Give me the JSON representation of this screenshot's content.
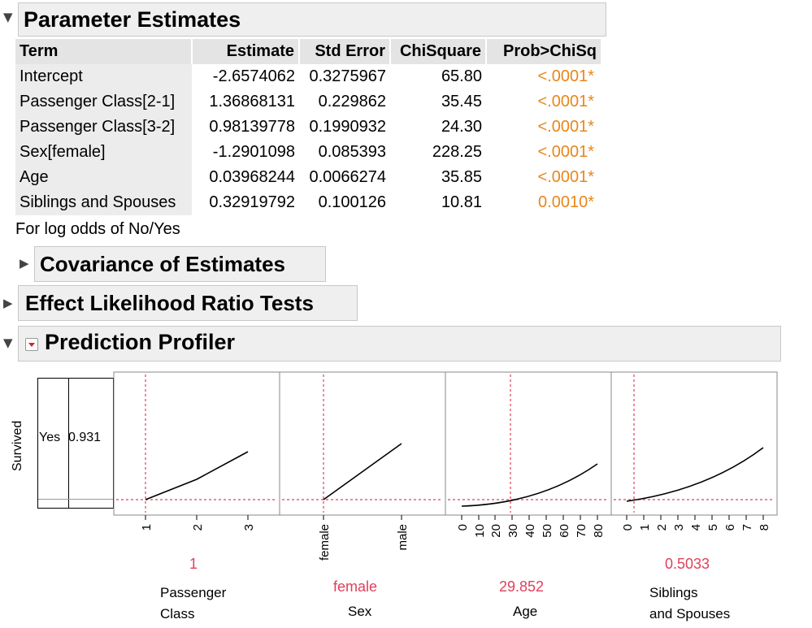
{
  "parameter_estimates": {
    "title": "Parameter Estimates",
    "columns": [
      "Term",
      "Estimate",
      "Std Error",
      "ChiSquare",
      "Prob>ChiSq"
    ],
    "rows": [
      {
        "term": "Intercept",
        "estimate": "-2.6574062",
        "std_error": "0.3275967",
        "chisquare": "65.80",
        "prob": "<.0001*"
      },
      {
        "term": "Passenger Class[2-1]",
        "estimate": "1.36868131",
        "std_error": "0.229862",
        "chisquare": "35.45",
        "prob": "<.0001*"
      },
      {
        "term": "Passenger Class[3-2]",
        "estimate": "0.98139778",
        "std_error": "0.1990932",
        "chisquare": "24.30",
        "prob": "<.0001*"
      },
      {
        "term": "Sex[female]",
        "estimate": "-1.2901098",
        "std_error": "0.085393",
        "chisquare": "228.25",
        "prob": "<.0001*"
      },
      {
        "term": "Age",
        "estimate": "0.03968244",
        "std_error": "0.0066274",
        "chisquare": "35.85",
        "prob": "<.0001*"
      },
      {
        "term": "Siblings and Spouses",
        "estimate": "0.32919792",
        "std_error": "0.100126",
        "chisquare": "10.81",
        "prob": "0.0010*"
      }
    ],
    "note": "For log odds of No/Yes"
  },
  "covariance": {
    "title": "Covariance of Estimates"
  },
  "effect_lr": {
    "title": "Effect Likelihood Ratio Tests"
  },
  "profiler": {
    "title": "Prediction Profiler",
    "y_label": "Survived",
    "y_level": "Yes",
    "y_value": "0.931",
    "factors": [
      {
        "name_line1": "Passenger",
        "name_line2": "Class",
        "current": "1",
        "ticks": [
          "1",
          "2",
          "3"
        ]
      },
      {
        "name_line1": "Sex",
        "name_line2": "",
        "current": "female",
        "ticks": [
          "female",
          "male"
        ]
      },
      {
        "name_line1": "Age",
        "name_line2": "",
        "current": "29.852",
        "ticks": [
          "0",
          "10",
          "20",
          "30",
          "40",
          "50",
          "60",
          "70",
          "80"
        ]
      },
      {
        "name_line1": "Siblings",
        "name_line2": "and Spouses",
        "current": "0.5033",
        "ticks": [
          "0",
          "1",
          "2",
          "3",
          "4",
          "5",
          "6",
          "7",
          "8"
        ]
      }
    ]
  },
  "colors": {
    "prob": "#e8861a",
    "current_value": "#e0405a",
    "crosshair": "#e0405a",
    "header_bg": "#efefef"
  }
}
